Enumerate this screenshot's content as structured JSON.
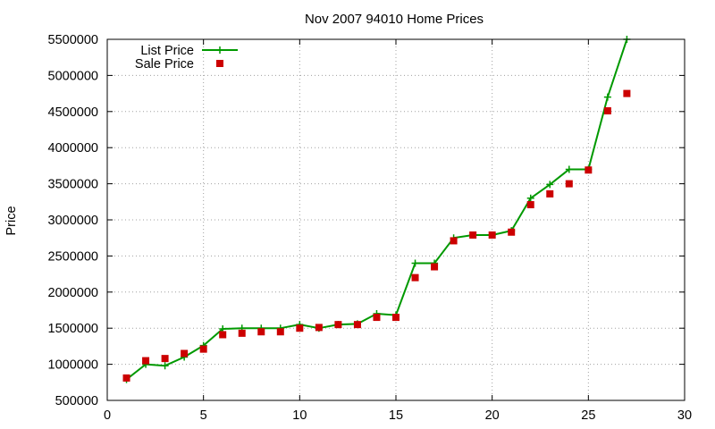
{
  "chart_data": {
    "type": "line",
    "title": "Nov 2007 94010 Home Prices",
    "xlabel": "",
    "ylabel": "Price",
    "xlim": [
      0,
      30
    ],
    "ylim": [
      500000,
      5500000
    ],
    "x_ticks": [
      "0",
      "5",
      "10",
      "15",
      "20",
      "25",
      "30"
    ],
    "y_ticks": [
      "500000",
      "1000000",
      "1500000",
      "2000000",
      "2500000",
      "3000000",
      "3500000",
      "4000000",
      "4500000",
      "5000000",
      "5500000"
    ],
    "grid": true,
    "legend_position": "top-left",
    "series": [
      {
        "name": "List Price",
        "style": "line+plus",
        "color": "#009900",
        "x": [
          1,
          2,
          3,
          4,
          5,
          6,
          7,
          8,
          9,
          10,
          11,
          12,
          13,
          14,
          15,
          16,
          17,
          18,
          19,
          20,
          21,
          22,
          23,
          24,
          25,
          26,
          27
        ],
        "y": [
          790000,
          1000000,
          980000,
          1100000,
          1260000,
          1490000,
          1500000,
          1500000,
          1500000,
          1550000,
          1500000,
          1550000,
          1560000,
          1700000,
          1680000,
          2400000,
          2400000,
          2750000,
          2790000,
          2790000,
          2850000,
          3300000,
          3490000,
          3700000,
          3700000,
          4700000,
          5500000
        ]
      },
      {
        "name": "Sale Price",
        "style": "square",
        "color": "#cc0000",
        "x": [
          1,
          2,
          3,
          4,
          5,
          6,
          7,
          8,
          9,
          10,
          11,
          12,
          13,
          14,
          15,
          16,
          17,
          18,
          19,
          20,
          21,
          22,
          23,
          24,
          25,
          26,
          27
        ],
        "y": [
          810000,
          1050000,
          1080000,
          1150000,
          1210000,
          1410000,
          1430000,
          1450000,
          1450000,
          1500000,
          1510000,
          1550000,
          1550000,
          1650000,
          1650000,
          2200000,
          2350000,
          2710000,
          2790000,
          2790000,
          2830000,
          3210000,
          3360000,
          3500000,
          3690000,
          4510000,
          4750000
        ]
      }
    ]
  }
}
